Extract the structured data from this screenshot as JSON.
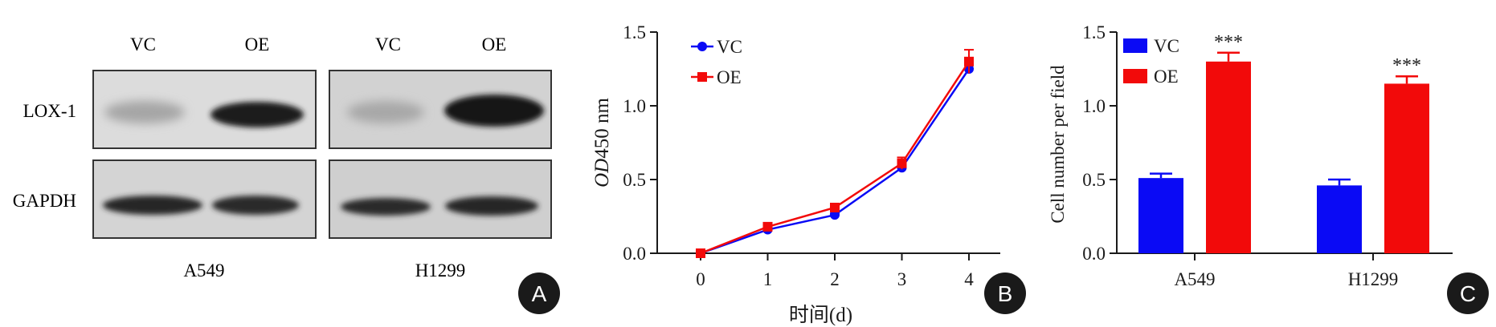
{
  "panels": {
    "A": {
      "letter": "A",
      "column_labels": [
        "VC",
        "OE",
        "VC",
        "OE"
      ],
      "row_labels": [
        "LOX-1",
        "GAPDH"
      ],
      "cell_lines": [
        "A549",
        "H1299"
      ]
    },
    "B": {
      "letter": "B"
    },
    "C": {
      "letter": "C"
    }
  },
  "colors": {
    "vc": "#0a0af5",
    "oe": "#f20a0a",
    "axis": "#1a1a1a",
    "badge": "#1a1a1a"
  },
  "chart_data": [
    {
      "id": "B",
      "type": "line",
      "title": "",
      "xlabel": "时间(d)",
      "ylabel_italic": "OD",
      "ylabel_rest": "450 nm",
      "x": [
        0,
        1,
        2,
        3,
        4
      ],
      "xticks": [
        "0",
        "1",
        "2",
        "3",
        "4"
      ],
      "ylim": [
        0.0,
        1.5
      ],
      "yticks": [
        "0.0",
        "0.5",
        "1.0",
        "1.5"
      ],
      "legend_position": "top-left",
      "series": [
        {
          "name": "VC",
          "values": [
            0.0,
            0.16,
            0.26,
            0.58,
            1.25
          ],
          "errors": [
            0.01,
            0.01,
            0.01,
            0.02,
            0.03
          ]
        },
        {
          "name": "OE",
          "values": [
            0.0,
            0.18,
            0.31,
            0.61,
            1.3
          ],
          "errors": [
            0.01,
            0.01,
            0.02,
            0.04,
            0.08
          ]
        }
      ]
    },
    {
      "id": "C",
      "type": "bar",
      "title": "",
      "xlabel": "",
      "ylabel": "Cell number per field",
      "categories": [
        "A549",
        "H1299"
      ],
      "ylim": [
        0.0,
        1.5
      ],
      "yticks": [
        "0.0",
        "0.5",
        "1.0",
        "1.5"
      ],
      "legend_position": "top-left",
      "series": [
        {
          "name": "VC",
          "values": [
            0.51,
            0.46
          ],
          "errors": [
            0.03,
            0.04
          ]
        },
        {
          "name": "OE",
          "values": [
            1.3,
            1.15
          ],
          "errors": [
            0.06,
            0.05
          ]
        }
      ],
      "annotations": [
        "***",
        "***"
      ]
    }
  ]
}
